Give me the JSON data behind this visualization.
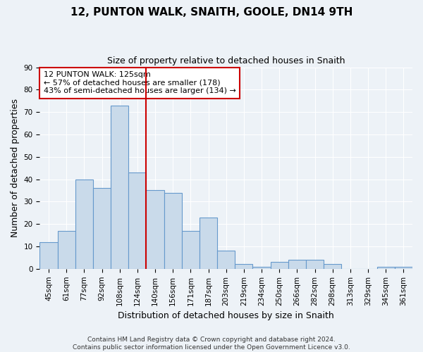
{
  "title": "12, PUNTON WALK, SNAITH, GOOLE, DN14 9TH",
  "subtitle": "Size of property relative to detached houses in Snaith",
  "xlabel": "Distribution of detached houses by size in Snaith",
  "ylabel": "Number of detached properties",
  "categories": [
    "45sqm",
    "61sqm",
    "77sqm",
    "92sqm",
    "108sqm",
    "124sqm",
    "140sqm",
    "156sqm",
    "171sqm",
    "187sqm",
    "203sqm",
    "219sqm",
    "234sqm",
    "250sqm",
    "266sqm",
    "282sqm",
    "298sqm",
    "313sqm",
    "329sqm",
    "345sqm",
    "361sqm"
  ],
  "values": [
    12,
    17,
    40,
    36,
    73,
    43,
    35,
    34,
    17,
    23,
    8,
    2,
    1,
    3,
    4,
    4,
    2,
    0,
    0,
    1,
    1
  ],
  "bar_color": "#c9daea",
  "bar_edge_color": "#6699cc",
  "marker_label": "12 PUNTON WALK: 125sqm",
  "annotation_line1": "← 57% of detached houses are smaller (178)",
  "annotation_line2": "43% of semi-detached houses are larger (134) →",
  "annotation_box_color": "#ffffff",
  "annotation_box_edge": "#cc0000",
  "vline_color": "#cc0000",
  "vline_position": 5,
  "ylim": [
    0,
    90
  ],
  "yticks": [
    0,
    10,
    20,
    30,
    40,
    50,
    60,
    70,
    80,
    90
  ],
  "footer": "Contains HM Land Registry data © Crown copyright and database right 2024.\nContains public sector information licensed under the Open Government Licence v3.0.",
  "bg_color": "#edf2f7",
  "grid_color": "#ffffff",
  "title_fontsize": 11,
  "subtitle_fontsize": 9,
  "axis_label_fontsize": 9,
  "tick_fontsize": 7.5
}
